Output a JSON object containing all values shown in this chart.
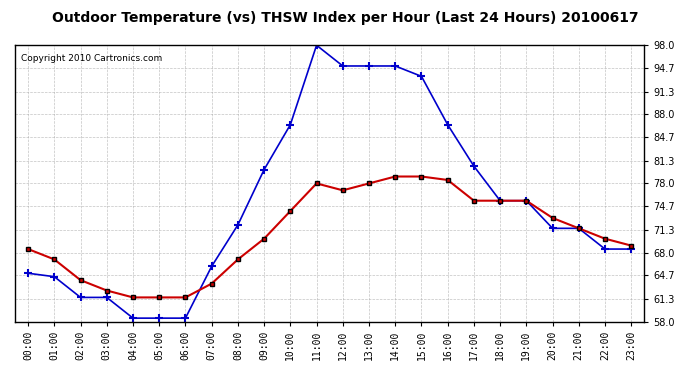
{
  "title": "Outdoor Temperature (vs) THSW Index per Hour (Last 24 Hours) 20100617",
  "copyright": "Copyright 2010 Cartronics.com",
  "hours": [
    0,
    1,
    2,
    3,
    4,
    5,
    6,
    7,
    8,
    9,
    10,
    11,
    12,
    13,
    14,
    15,
    16,
    17,
    18,
    19,
    20,
    21,
    22,
    23
  ],
  "thsw": [
    65.0,
    64.5,
    61.5,
    61.5,
    58.5,
    58.5,
    58.5,
    66.0,
    72.0,
    80.0,
    86.5,
    98.0,
    95.0,
    95.0,
    95.0,
    93.5,
    86.5,
    80.5,
    75.5,
    75.5,
    71.5,
    71.5,
    68.5,
    68.5
  ],
  "temp": [
    68.5,
    67.0,
    64.0,
    62.5,
    61.5,
    61.5,
    61.5,
    63.5,
    67.0,
    70.0,
    74.0,
    78.0,
    77.0,
    78.0,
    79.0,
    79.0,
    78.5,
    75.5,
    75.5,
    75.5,
    73.0,
    71.5,
    70.0,
    69.0
  ],
  "ylim": [
    58.0,
    98.0
  ],
  "yticks": [
    58.0,
    61.3,
    64.7,
    68.0,
    71.3,
    74.7,
    78.0,
    81.3,
    84.7,
    88.0,
    91.3,
    94.7,
    98.0
  ],
  "background_color": "#ffffff",
  "plot_bg_color": "#ffffff",
  "grid_color": "#aaaaaa",
  "thsw_color": "#0000cc",
  "temp_color": "#cc0000",
  "title_color": "#000000",
  "copyright_color": "#000000"
}
